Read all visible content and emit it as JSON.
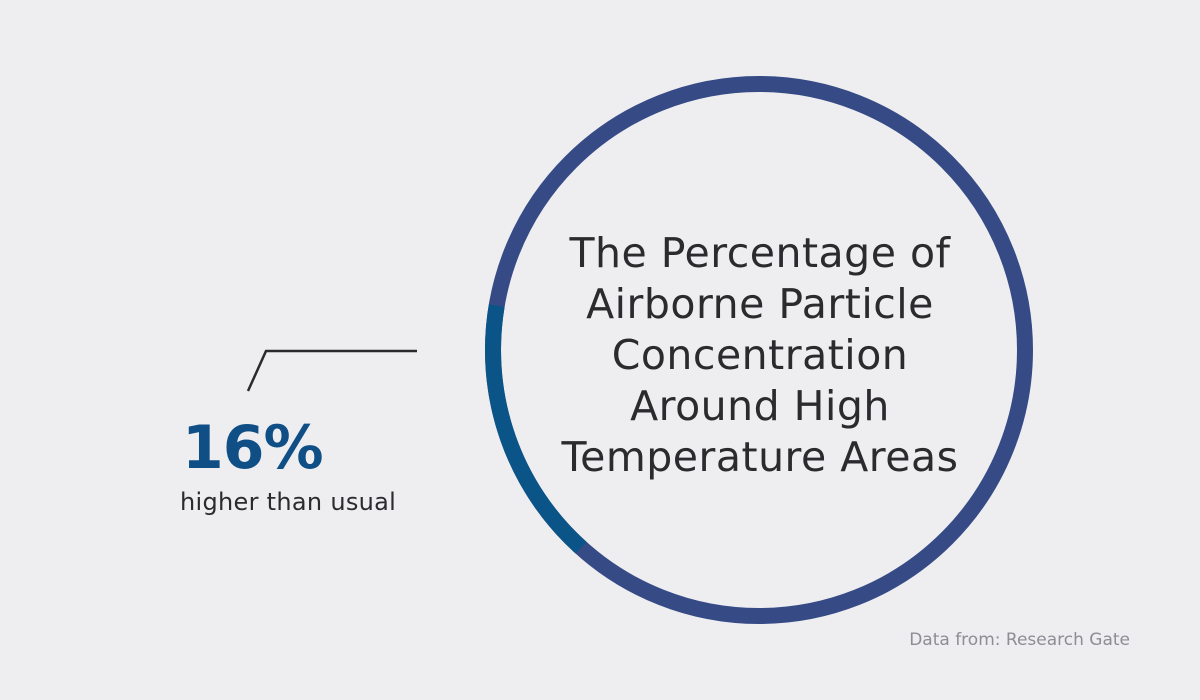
{
  "colors": {
    "background": "#eeeef1",
    "ring": "#364a86",
    "highlight_segment": "#0b5488",
    "value_text": "#0f4f86",
    "body_text": "#2b2b2e",
    "muted_text": "#8d8d93",
    "callout_line": "#2b2b2e"
  },
  "chart_data": {
    "type": "pie",
    "title_lines": [
      "The Percentage of",
      "Airborne Particle",
      "Concentration",
      "Around High",
      "Temperature Areas"
    ],
    "slices": [
      {
        "label": "higher than usual",
        "value": 16,
        "color": "#0b5488"
      },
      {
        "label": "",
        "value": 84,
        "color": "#364a86"
      }
    ],
    "highlight": {
      "value_label": "16%",
      "caption": "higher than usual"
    },
    "source": "Data from: Research Gate"
  }
}
